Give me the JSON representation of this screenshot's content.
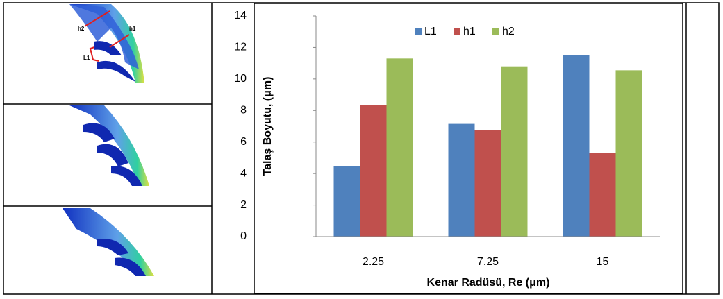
{
  "chart_data": {
    "type": "bar",
    "x_label": "Kenar Radüsü, Re (μm)",
    "y_label": "Talaş Boyutu, (μm)",
    "categories": [
      "2.25",
      "7.25",
      "15"
    ],
    "series": [
      {
        "name": "L1",
        "color": "#4f81bd",
        "values": [
          4.45,
          7.15,
          11.5
        ]
      },
      {
        "name": "h1",
        "color": "#c0504d",
        "values": [
          8.35,
          6.75,
          5.3
        ]
      },
      {
        "name": "h2",
        "color": "#9bbb59",
        "values": [
          11.3,
          10.8,
          10.55
        ]
      }
    ],
    "ylim": [
      0,
      14
    ],
    "yticks": [
      0,
      2,
      4,
      6,
      8,
      10,
      12,
      14
    ],
    "grid": false,
    "legend": "top"
  },
  "figure": {
    "labels": [
      "h2",
      "h1",
      "L1"
    ]
  }
}
